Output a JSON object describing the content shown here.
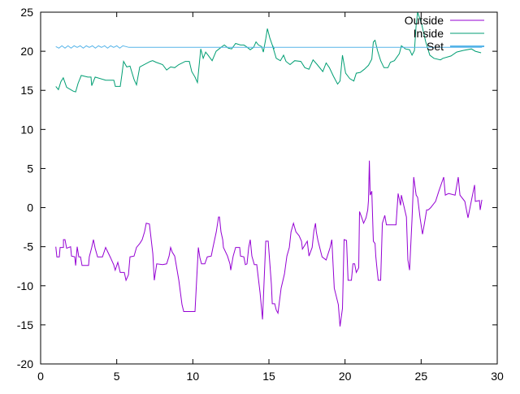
{
  "chart_data": {
    "type": "line",
    "title": "",
    "xlabel": "",
    "ylabel": "",
    "xlim": [
      0,
      30
    ],
    "ylim": [
      -20,
      25
    ],
    "x_ticks": [
      0,
      5,
      10,
      15,
      20,
      25,
      30
    ],
    "y_ticks": [
      -20,
      -15,
      -10,
      -5,
      0,
      5,
      10,
      15,
      20,
      25
    ],
    "grid": false,
    "legend_position": "top-right",
    "series": [
      {
        "name": "Outside",
        "color": "#9400d3",
        "points": [
          [
            1.0,
            -5.0
          ],
          [
            1.07,
            -6.3
          ],
          [
            1.23,
            -6.3
          ],
          [
            1.28,
            -5.1
          ],
          [
            1.5,
            -5.1
          ],
          [
            1.5,
            -4.1
          ],
          [
            1.6,
            -4.1
          ],
          [
            1.71,
            -5.2
          ],
          [
            1.97,
            -5.0
          ],
          [
            2.03,
            -6.2
          ],
          [
            2.24,
            -6.3
          ],
          [
            2.3,
            -7.4
          ],
          [
            2.4,
            -5.0
          ],
          [
            2.51,
            -6.3
          ],
          [
            2.62,
            -6.3
          ],
          [
            2.72,
            -7.4
          ],
          [
            3.15,
            -7.4
          ],
          [
            3.2,
            -6.3
          ],
          [
            3.36,
            -5.1
          ],
          [
            3.47,
            -4.1
          ],
          [
            3.58,
            -5.2
          ],
          [
            3.74,
            -6.3
          ],
          [
            4.06,
            -6.3
          ],
          [
            4.27,
            -5.1
          ],
          [
            4.59,
            -6.4
          ],
          [
            4.8,
            -7.3
          ],
          [
            4.9,
            -8.0
          ],
          [
            5.07,
            -7.0
          ],
          [
            5.23,
            -8.3
          ],
          [
            5.5,
            -8.3
          ],
          [
            5.61,
            -9.3
          ],
          [
            5.77,
            -8.6
          ],
          [
            5.87,
            -6.3
          ],
          [
            6.14,
            -6.2
          ],
          [
            6.3,
            -5.1
          ],
          [
            6.51,
            -4.6
          ],
          [
            6.67,
            -4.1
          ],
          [
            6.83,
            -3.1
          ],
          [
            6.94,
            -2.0
          ],
          [
            7.15,
            -2.1
          ],
          [
            7.37,
            -5.9
          ],
          [
            7.47,
            -9.3
          ],
          [
            7.63,
            -7.2
          ],
          [
            8.01,
            -7.3
          ],
          [
            8.28,
            -7.2
          ],
          [
            8.44,
            -6.2
          ],
          [
            8.54,
            -5.1
          ],
          [
            8.65,
            -5.7
          ],
          [
            8.81,
            -6.2
          ],
          [
            9.08,
            -9.3
          ],
          [
            9.29,
            -12.4
          ],
          [
            9.4,
            -13.3
          ],
          [
            10.14,
            -13.3
          ],
          [
            10.36,
            -5.1
          ],
          [
            10.46,
            -6.4
          ],
          [
            10.57,
            -7.2
          ],
          [
            10.79,
            -7.2
          ],
          [
            10.95,
            -6.3
          ],
          [
            11.21,
            -6.2
          ],
          [
            11.32,
            -5.1
          ],
          [
            11.54,
            -3.1
          ],
          [
            11.69,
            -1.2
          ],
          [
            11.75,
            -1.2
          ],
          [
            11.85,
            -3.1
          ],
          [
            11.96,
            -4.1
          ],
          [
            12.01,
            -5.1
          ],
          [
            12.28,
            -6.2
          ],
          [
            12.44,
            -7.2
          ],
          [
            12.49,
            -8.0
          ],
          [
            12.65,
            -6.2
          ],
          [
            12.81,
            -5.1
          ],
          [
            13.08,
            -5.1
          ],
          [
            13.13,
            -6.2
          ],
          [
            13.35,
            -6.3
          ],
          [
            13.45,
            -7.3
          ],
          [
            13.56,
            -7.2
          ],
          [
            13.67,
            -5.1
          ],
          [
            13.77,
            -4.1
          ],
          [
            13.88,
            -6.2
          ],
          [
            14.04,
            -7.3
          ],
          [
            14.2,
            -7.3
          ],
          [
            14.42,
            -10.9
          ],
          [
            14.58,
            -14.3
          ],
          [
            14.79,
            -4.3
          ],
          [
            14.95,
            -4.3
          ],
          [
            15.16,
            -9.8
          ],
          [
            15.22,
            -12.3
          ],
          [
            15.38,
            -12.3
          ],
          [
            15.48,
            -13.1
          ],
          [
            15.59,
            -13.5
          ],
          [
            15.8,
            -10.3
          ],
          [
            16.02,
            -8.5
          ],
          [
            16.18,
            -6.2
          ],
          [
            16.34,
            -5.1
          ],
          [
            16.45,
            -3.1
          ],
          [
            16.61,
            -2.0
          ],
          [
            16.77,
            -3.1
          ],
          [
            16.98,
            -3.6
          ],
          [
            17.14,
            -4.3
          ],
          [
            17.2,
            -5.3
          ],
          [
            17.52,
            -4.3
          ],
          [
            17.63,
            -6.2
          ],
          [
            17.84,
            -5.1
          ],
          [
            17.95,
            -3.0
          ],
          [
            18.06,
            -2.0
          ],
          [
            18.11,
            -3.1
          ],
          [
            18.22,
            -4.2
          ],
          [
            18.49,
            -6.3
          ],
          [
            18.76,
            -6.7
          ],
          [
            19.02,
            -5.1
          ],
          [
            19.13,
            -4.1
          ],
          [
            19.29,
            -10.3
          ],
          [
            19.56,
            -12.4
          ],
          [
            19.67,
            -15.2
          ],
          [
            19.83,
            -12.9
          ],
          [
            19.94,
            -4.1
          ],
          [
            20.1,
            -4.2
          ],
          [
            20.2,
            -9.3
          ],
          [
            20.42,
            -9.3
          ],
          [
            20.52,
            -7.2
          ],
          [
            20.63,
            -7.2
          ],
          [
            20.74,
            -8.3
          ],
          [
            20.9,
            -7.7
          ],
          [
            20.95,
            -0.5
          ],
          [
            21.1,
            -1.3
          ],
          [
            21.22,
            -2.0
          ],
          [
            21.38,
            -1.3
          ],
          [
            21.49,
            -0.3
          ],
          [
            21.54,
            0.9
          ],
          [
            21.6,
            6.0
          ],
          [
            21.65,
            1.6
          ],
          [
            21.76,
            2.1
          ],
          [
            21.86,
            -4.3
          ],
          [
            21.97,
            -4.6
          ],
          [
            22.02,
            -6.2
          ],
          [
            22.08,
            -7.4
          ],
          [
            22.18,
            -9.3
          ],
          [
            22.34,
            -9.3
          ],
          [
            22.45,
            -2.0
          ],
          [
            22.61,
            -1.0
          ],
          [
            22.72,
            -2.2
          ],
          [
            22.98,
            -2.2
          ],
          [
            23.35,
            -2.2
          ],
          [
            23.49,
            1.8
          ],
          [
            23.65,
            0.3
          ],
          [
            23.7,
            1.6
          ],
          [
            24.03,
            -1.2
          ],
          [
            24.13,
            -6.7
          ],
          [
            24.24,
            -8.0
          ],
          [
            24.4,
            -1.5
          ],
          [
            24.51,
            3.9
          ],
          [
            24.67,
            1.6
          ],
          [
            24.77,
            1.3
          ],
          [
            24.93,
            -1.3
          ],
          [
            25.09,
            -3.4
          ],
          [
            25.2,
            -2.2
          ],
          [
            25.36,
            -0.3
          ],
          [
            25.47,
            -0.3
          ],
          [
            25.63,
            0.0
          ],
          [
            25.95,
            0.8
          ],
          [
            26.16,
            2.1
          ],
          [
            26.48,
            3.9
          ],
          [
            26.59,
            1.6
          ],
          [
            26.8,
            1.8
          ],
          [
            27.23,
            1.6
          ],
          [
            27.44,
            3.9
          ],
          [
            27.55,
            1.6
          ],
          [
            27.87,
            0.8
          ],
          [
            28.08,
            -1.3
          ],
          [
            28.3,
            0.9
          ],
          [
            28.51,
            2.9
          ],
          [
            28.56,
            0.8
          ],
          [
            28.83,
            0.9
          ],
          [
            28.88,
            -0.3
          ],
          [
            28.99,
            1.0
          ]
        ]
      },
      {
        "name": "Inside",
        "color": "#009e73",
        "points": [
          [
            1.0,
            15.5
          ],
          [
            1.17,
            15.1
          ],
          [
            1.33,
            16.1
          ],
          [
            1.49,
            16.6
          ],
          [
            1.71,
            15.4
          ],
          [
            2.14,
            14.9
          ],
          [
            2.3,
            14.8
          ],
          [
            2.46,
            15.9
          ],
          [
            2.67,
            16.9
          ],
          [
            3.1,
            16.7
          ],
          [
            3.31,
            16.7
          ],
          [
            3.36,
            15.6
          ],
          [
            3.58,
            16.7
          ],
          [
            4.27,
            16.3
          ],
          [
            4.81,
            16.3
          ],
          [
            4.91,
            15.5
          ],
          [
            5.23,
            15.5
          ],
          [
            5.34,
            17.0
          ],
          [
            5.45,
            18.7
          ],
          [
            5.66,
            18.0
          ],
          [
            5.87,
            18.1
          ],
          [
            6.14,
            16.4
          ],
          [
            6.3,
            15.7
          ],
          [
            6.51,
            18.0
          ],
          [
            7.2,
            18.7
          ],
          [
            7.36,
            18.8
          ],
          [
            7.58,
            18.6
          ],
          [
            8.01,
            18.3
          ],
          [
            8.28,
            17.6
          ],
          [
            8.54,
            18.0
          ],
          [
            8.81,
            17.9
          ],
          [
            9.08,
            18.3
          ],
          [
            9.5,
            18.7
          ],
          [
            9.77,
            18.7
          ],
          [
            9.93,
            17.4
          ],
          [
            10.14,
            16.7
          ],
          [
            10.3,
            16.0
          ],
          [
            10.52,
            20.3
          ],
          [
            10.68,
            19.1
          ],
          [
            10.84,
            19.9
          ],
          [
            11.0,
            19.5
          ],
          [
            11.27,
            18.8
          ],
          [
            11.53,
            20.0
          ],
          [
            11.85,
            20.5
          ],
          [
            12.07,
            20.8
          ],
          [
            12.33,
            20.4
          ],
          [
            12.55,
            20.3
          ],
          [
            12.81,
            21.0
          ],
          [
            13.13,
            20.8
          ],
          [
            13.35,
            20.8
          ],
          [
            13.51,
            20.6
          ],
          [
            13.77,
            20.2
          ],
          [
            13.99,
            20.5
          ],
          [
            14.15,
            21.2
          ],
          [
            14.31,
            20.8
          ],
          [
            14.52,
            20.6
          ],
          [
            14.63,
            19.9
          ],
          [
            14.79,
            21.6
          ],
          [
            14.9,
            22.9
          ],
          [
            15.06,
            21.7
          ],
          [
            15.22,
            20.8
          ],
          [
            15.35,
            20.3
          ],
          [
            15.22,
            20.8
          ],
          [
            15.48,
            19.1
          ],
          [
            15.75,
            18.8
          ],
          [
            15.96,
            19.5
          ],
          [
            16.12,
            18.7
          ],
          [
            16.39,
            18.3
          ],
          [
            16.69,
            18.8
          ],
          [
            17.1,
            18.7
          ],
          [
            17.36,
            17.9
          ],
          [
            17.63,
            17.7
          ],
          [
            17.9,
            18.9
          ],
          [
            18.17,
            18.3
          ],
          [
            18.54,
            17.4
          ],
          [
            18.76,
            18.5
          ],
          [
            18.97,
            17.9
          ],
          [
            19.24,
            16.8
          ],
          [
            19.51,
            15.8
          ],
          [
            19.67,
            16.2
          ],
          [
            19.83,
            19.5
          ],
          [
            20.04,
            17.2
          ],
          [
            20.31,
            16.5
          ],
          [
            20.58,
            16.2
          ],
          [
            20.74,
            17.2
          ],
          [
            21.0,
            17.3
          ],
          [
            21.27,
            17.7
          ],
          [
            21.54,
            18.2
          ],
          [
            21.76,
            19.0
          ],
          [
            21.86,
            21.2
          ],
          [
            21.97,
            21.4
          ],
          [
            22.13,
            20.1
          ],
          [
            22.34,
            18.8
          ],
          [
            22.56,
            17.9
          ],
          [
            22.82,
            17.9
          ],
          [
            22.98,
            18.6
          ],
          [
            23.24,
            18.8
          ],
          [
            23.57,
            19.7
          ],
          [
            23.7,
            20.7
          ],
          [
            23.97,
            20.3
          ],
          [
            24.24,
            20.2
          ],
          [
            24.4,
            19.5
          ],
          [
            24.56,
            20.1
          ],
          [
            24.67,
            23.4
          ],
          [
            24.77,
            25.0
          ],
          [
            25.04,
            23.4
          ],
          [
            25.3,
            21.2
          ],
          [
            25.57,
            19.5
          ],
          [
            25.84,
            19.1
          ],
          [
            26.27,
            18.9
          ],
          [
            26.43,
            19.1
          ],
          [
            26.96,
            19.4
          ],
          [
            27.33,
            19.9
          ],
          [
            27.76,
            20.1
          ],
          [
            28.3,
            20.3
          ],
          [
            28.56,
            20.0
          ],
          [
            28.94,
            19.8
          ]
        ]
      },
      {
        "name": "Set",
        "color": "#56b4e9",
        "points": [
          [
            1.0,
            20.6
          ],
          [
            1.2,
            20.4
          ],
          [
            1.4,
            20.7
          ],
          [
            1.6,
            20.4
          ],
          [
            1.8,
            20.7
          ],
          [
            2.0,
            20.4
          ],
          [
            2.2,
            20.7
          ],
          [
            2.4,
            20.5
          ],
          [
            2.6,
            20.7
          ],
          [
            2.8,
            20.4
          ],
          [
            3.0,
            20.7
          ],
          [
            3.2,
            20.5
          ],
          [
            3.4,
            20.7
          ],
          [
            3.6,
            20.4
          ],
          [
            3.8,
            20.7
          ],
          [
            4.0,
            20.5
          ],
          [
            4.2,
            20.7
          ],
          [
            4.4,
            20.4
          ],
          [
            4.6,
            20.7
          ],
          [
            4.8,
            20.5
          ],
          [
            5.0,
            20.7
          ],
          [
            5.2,
            20.4
          ],
          [
            5.4,
            20.7
          ],
          [
            5.6,
            20.6
          ],
          [
            5.8,
            20.5
          ],
          [
            29.0,
            20.5
          ]
        ]
      }
    ]
  }
}
